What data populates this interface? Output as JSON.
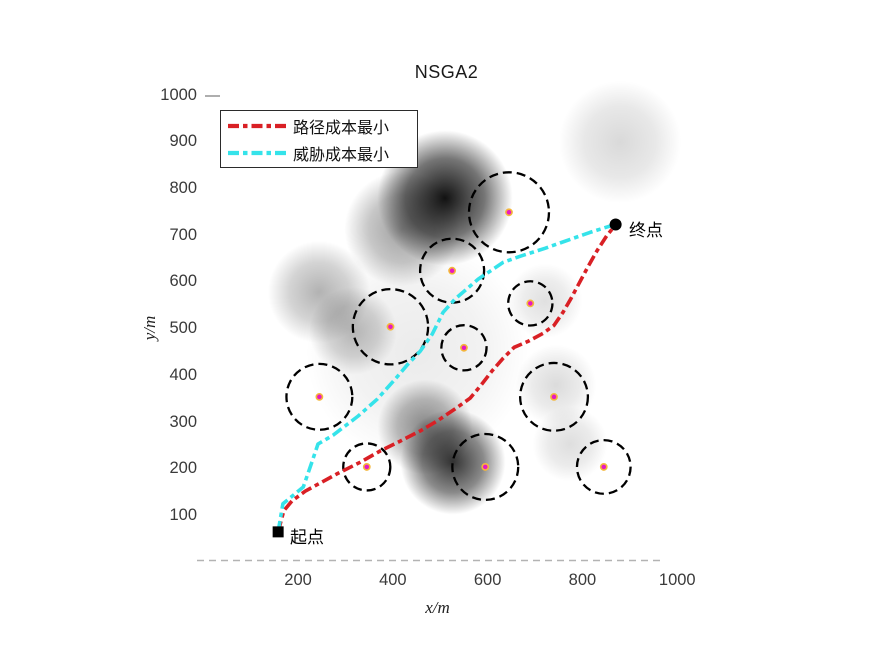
{
  "title": "NSGA2",
  "legend": {
    "items": [
      {
        "label": "路径成本最小",
        "color": "#d92025"
      },
      {
        "label": "威胁成本最小",
        "color": "#35e3ea"
      }
    ]
  },
  "axes": {
    "x_label": "x/m",
    "y_label": "y/m",
    "x_ticks": [
      200,
      400,
      600,
      800,
      1000
    ],
    "y_ticks": [
      100,
      200,
      300,
      400,
      500,
      600,
      700,
      800,
      900,
      1000
    ],
    "x_range": [
      0,
      1000
    ],
    "y_range": [
      0,
      1000
    ]
  },
  "annotations": {
    "start_label": "起点",
    "end_label": "终点"
  },
  "colors": {
    "path_cost_red": "#d92025",
    "threat_cost_cyan": "#35e3ea",
    "threat_circle_stroke": "#000000",
    "threat_center_fill": "#e619c3",
    "threat_center_ring": "#f4b63a",
    "marker_black": "#000000",
    "axis_dash_gray": "#b3b3b3",
    "tick_gray": "#9a9a9a"
  },
  "chart_data": {
    "type": "line",
    "title": "NSGA2",
    "xlabel": "x/m",
    "ylabel": "y/m",
    "xlim": [
      0,
      1000
    ],
    "ylim": [
      0,
      1000
    ],
    "grid": false,
    "legend_position": "top-left",
    "x_ticks": [
      200,
      400,
      600,
      800,
      1000
    ],
    "y_ticks": [
      100,
      200,
      300,
      400,
      500,
      600,
      700,
      800,
      900,
      1000
    ],
    "series": [
      {
        "name": "路径成本最小",
        "color": "#d92025",
        "style": "dash-dot",
        "points": [
          [
            158,
            66
          ],
          [
            170,
            111
          ],
          [
            187,
            132
          ],
          [
            215,
            153
          ],
          [
            242,
            168
          ],
          [
            282,
            190
          ],
          [
            331,
            215
          ],
          [
            373,
            239
          ],
          [
            415,
            260
          ],
          [
            458,
            282
          ],
          [
            496,
            305
          ],
          [
            531,
            329
          ],
          [
            563,
            352
          ],
          [
            586,
            380
          ],
          [
            609,
            410
          ],
          [
            633,
            438
          ],
          [
            656,
            461
          ],
          [
            686,
            474
          ],
          [
            717,
            491
          ],
          [
            740,
            508
          ],
          [
            759,
            536
          ],
          [
            776,
            566
          ],
          [
            793,
            598
          ],
          [
            812,
            634
          ],
          [
            831,
            668
          ],
          [
            852,
            701
          ],
          [
            869,
            722
          ]
        ]
      },
      {
        "name": "威胁成本最小",
        "color": "#35e3ea",
        "style": "dash-dot",
        "points": [
          [
            158,
            66
          ],
          [
            168,
            126
          ],
          [
            211,
            162
          ],
          [
            230,
            218
          ],
          [
            242,
            254
          ],
          [
            274,
            273
          ],
          [
            327,
            314
          ],
          [
            367,
            350
          ],
          [
            405,
            393
          ],
          [
            432,
            425
          ],
          [
            458,
            453
          ],
          [
            483,
            489
          ],
          [
            506,
            536
          ],
          [
            531,
            564
          ],
          [
            555,
            585
          ],
          [
            580,
            607
          ],
          [
            605,
            624
          ],
          [
            633,
            643
          ],
          [
            669,
            656
          ],
          [
            721,
            673
          ],
          [
            774,
            692
          ],
          [
            816,
            707
          ],
          [
            869,
            724
          ]
        ]
      }
    ],
    "start_point": {
      "x": 158,
      "y": 66,
      "label": "起点",
      "marker": "square"
    },
    "end_point": {
      "x": 870,
      "y": 724,
      "label": "终点",
      "marker": "circle"
    },
    "threat_circles": [
      {
        "x": 645,
        "y": 750,
        "r": 85
      },
      {
        "x": 525,
        "y": 625,
        "r": 68
      },
      {
        "x": 690,
        "y": 555,
        "r": 47
      },
      {
        "x": 395,
        "y": 505,
        "r": 80
      },
      {
        "x": 550,
        "y": 460,
        "r": 48
      },
      {
        "x": 245,
        "y": 355,
        "r": 70
      },
      {
        "x": 740,
        "y": 355,
        "r": 72
      },
      {
        "x": 345,
        "y": 205,
        "r": 50
      },
      {
        "x": 595,
        "y": 205,
        "r": 70
      },
      {
        "x": 845,
        "y": 205,
        "r": 57
      }
    ],
    "threat_field_blobs": [
      {
        "x": 510,
        "y": 780,
        "r": 200,
        "intensity": 0.93
      },
      {
        "x": 420,
        "y": 715,
        "r": 170,
        "intensity": 0.38
      },
      {
        "x": 527,
        "y": 215,
        "r": 155,
        "intensity": 0.8
      },
      {
        "x": 468,
        "y": 290,
        "r": 140,
        "intensity": 0.45
      },
      {
        "x": 245,
        "y": 580,
        "r": 150,
        "intensity": 0.3
      },
      {
        "x": 315,
        "y": 495,
        "r": 130,
        "intensity": 0.26
      },
      {
        "x": 880,
        "y": 900,
        "r": 180,
        "intensity": 0.15
      },
      {
        "x": 720,
        "y": 560,
        "r": 110,
        "intensity": 0.12
      },
      {
        "x": 745,
        "y": 380,
        "r": 120,
        "intensity": 0.14
      },
      {
        "x": 774,
        "y": 254,
        "r": 110,
        "intensity": 0.13
      },
      {
        "x": 450,
        "y": 450,
        "r": 330,
        "intensity": 0.08
      }
    ]
  }
}
